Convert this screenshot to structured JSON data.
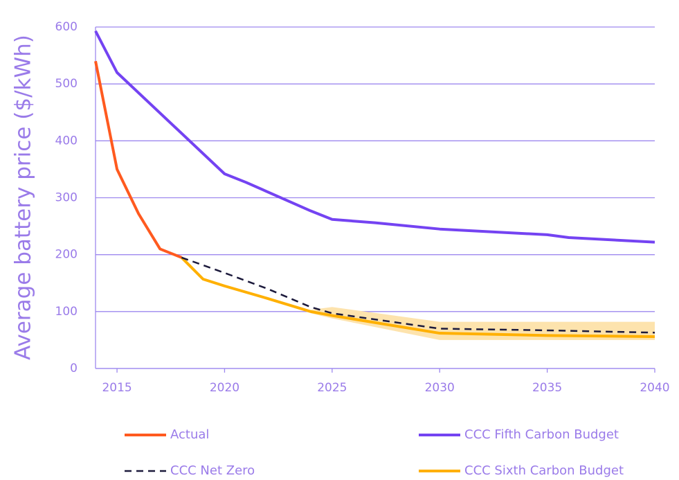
{
  "chart_data": {
    "type": "line",
    "y_label": "Average battery price ($/kWh)",
    "xlim": [
      2014,
      2040
    ],
    "xticks": [
      2015,
      2020,
      2025,
      2030,
      2035,
      2040
    ],
    "ylim": [
      0,
      600
    ],
    "yticks": [
      0,
      100,
      200,
      300,
      400,
      500,
      600
    ],
    "grid": true,
    "legend": "bottom",
    "band": {
      "x": [
        2024,
        2025,
        2030,
        2040
      ],
      "upper": [
        103,
        108,
        82,
        82
      ],
      "lower": [
        97,
        88,
        50,
        50
      ],
      "color": "#fde3ad"
    },
    "series": [
      {
        "name": "CCC Fifth Carbon Budget",
        "color": "#7443f2",
        "dashed": false,
        "x": [
          2014,
          2015,
          2020,
          2021,
          2024,
          2025,
          2027,
          2030,
          2035,
          2036,
          2040
        ],
        "values": [
          593,
          520,
          342,
          327,
          277,
          262,
          256,
          245,
          235,
          230,
          222
        ]
      },
      {
        "name": "Actual",
        "color": "#ff5a1f",
        "dashed": false,
        "x": [
          2014,
          2015,
          2016,
          2017,
          2018
        ],
        "values": [
          540,
          350,
          272,
          210,
          195
        ]
      },
      {
        "name": "CCC Sixth Carbon Budget",
        "color": "#ffb000",
        "dashed": false,
        "x": [
          2018,
          2019,
          2020,
          2022,
          2024,
          2025,
          2030,
          2035,
          2040
        ],
        "values": [
          195,
          157,
          145,
          123,
          100,
          93,
          62,
          58,
          56
        ]
      },
      {
        "name": "CCC Net Zero",
        "color": "#1c1a3c",
        "dashed": true,
        "x": [
          2018,
          2020,
          2022,
          2024,
          2025,
          2030,
          2035,
          2040
        ],
        "values": [
          195,
          168,
          140,
          108,
          97,
          70,
          67,
          63
        ]
      }
    ]
  }
}
